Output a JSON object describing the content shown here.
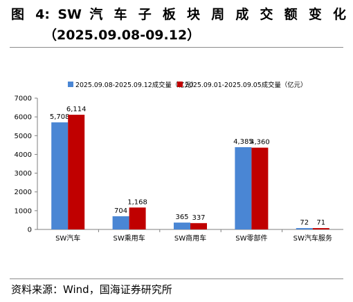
{
  "figure": {
    "title": "图 4:  SW 汽 车 子 板 块 周 成 交 额 变 化",
    "subtitle": "（2025.09.08-09.12）",
    "source": "资料来源：Wind，国海证券研究所"
  },
  "chart_data": {
    "type": "bar",
    "categories": [
      "SW汽车",
      "SW乘用车",
      "SW商用车",
      "SW零部件",
      "SW汽车服务"
    ],
    "series": [
      {
        "name": "2025.09.08-2025.09.12成交量（亿元）",
        "values": [
          5708,
          704,
          365,
          4385,
          72
        ],
        "color": "#4a86d4"
      },
      {
        "name": "2025.09.01-2025.09.05成交量（亿元）",
        "values": [
          6114,
          1168,
          337,
          4360,
          71
        ],
        "color": "#c00000"
      }
    ],
    "data_labels": [
      [
        "5,708",
        "704",
        "365",
        "4,385",
        "72"
      ],
      [
        "6,114",
        "1,168",
        "337",
        "4,360",
        "71"
      ]
    ],
    "yticks": [
      "0",
      "1000",
      "2000",
      "3000",
      "4000",
      "5000",
      "6000",
      "7000"
    ],
    "ylim": [
      0,
      7000
    ],
    "legend": "top",
    "grid": false
  }
}
